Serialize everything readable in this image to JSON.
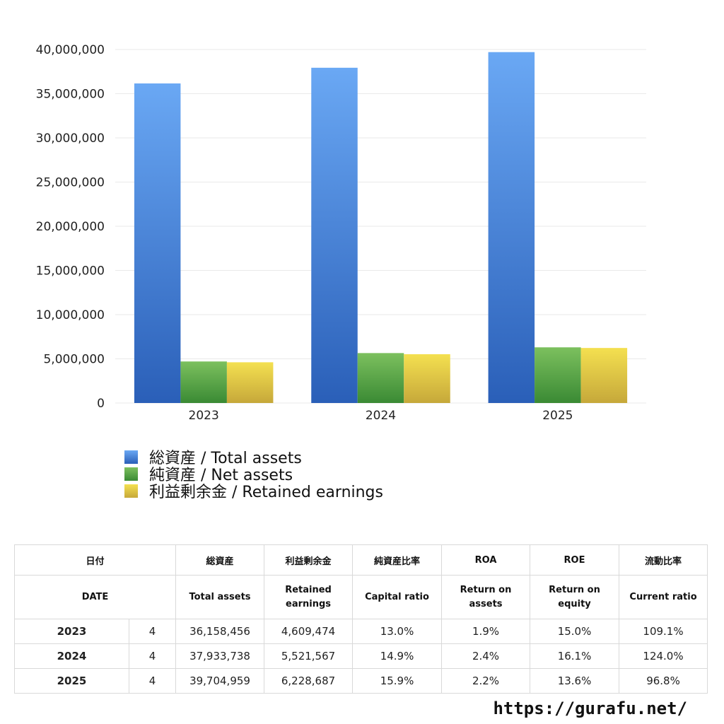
{
  "chart_data": {
    "type": "bar",
    "categories": [
      "2023",
      "2024",
      "2025"
    ],
    "series": [
      {
        "name": "総資産 / Total assets",
        "values": [
          36158456,
          37933738,
          39704959
        ],
        "color": "#4a86dc"
      },
      {
        "name": "純資産 / Net assets",
        "values": [
          4700000,
          5650000,
          6300000
        ],
        "color": "#5aa64a"
      },
      {
        "name": "利益剰余金 / Retained earnings",
        "values": [
          4609474,
          5521567,
          6228687
        ],
        "color": "#e8cf4a"
      }
    ],
    "ylim": [
      0,
      40000000
    ],
    "yticks": [
      {
        "value": 0,
        "label": "0"
      },
      {
        "value": 5000000,
        "label": "5,000,000"
      },
      {
        "value": 10000000,
        "label": "10,000,000"
      },
      {
        "value": 15000000,
        "label": "15,000,000"
      },
      {
        "value": 20000000,
        "label": "20,000,000"
      },
      {
        "value": 25000000,
        "label": "25,000,000"
      },
      {
        "value": 30000000,
        "label": "30,000,000"
      },
      {
        "value": 35000000,
        "label": "35,000,000"
      },
      {
        "value": 40000000,
        "label": "40,000,000"
      }
    ],
    "grid": true,
    "legend_position": "bottom"
  },
  "table": {
    "header_jp": {
      "date": "日付",
      "total_assets": "総資産",
      "retained": "利益剰余金",
      "capital_ratio": "純資産比率",
      "roa": "ROA",
      "roe": "ROE",
      "current_ratio": "流動比率"
    },
    "header_en": {
      "date": "DATE",
      "total_assets": "Total assets",
      "retained": "Retained earnings",
      "capital_ratio": "Capital ratio",
      "roa": "Return on assets",
      "roe": "Return on equity",
      "current_ratio": "Current ratio"
    },
    "rows": [
      {
        "year": "2023",
        "month": "4",
        "total_assets": "36,158,456",
        "retained": "4,609,474",
        "capital_ratio": "13.0%",
        "roa": "1.9%",
        "roe": "15.0%",
        "current_ratio": "109.1%"
      },
      {
        "year": "2024",
        "month": "4",
        "total_assets": "37,933,738",
        "retained": "5,521,567",
        "capital_ratio": "14.9%",
        "roa": "2.4%",
        "roe": "16.1%",
        "current_ratio": "124.0%"
      },
      {
        "year": "2025",
        "month": "4",
        "total_assets": "39,704,959",
        "retained": "6,228,687",
        "capital_ratio": "15.9%",
        "roa": "2.2%",
        "roe": "13.6%",
        "current_ratio": "96.8%"
      }
    ]
  },
  "footer": {
    "url": "https://gurafu.net/"
  }
}
